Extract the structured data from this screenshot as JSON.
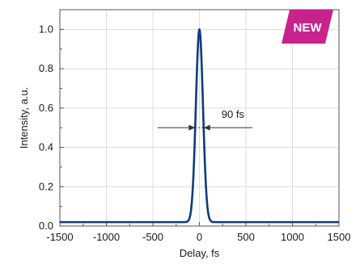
{
  "badge": {
    "label": "NEW",
    "color": "#c8238c"
  },
  "chart_data": {
    "type": "line",
    "xlabel": "Delay, fs",
    "ylabel": "Intensity, a.u.",
    "xlim": [
      -1500,
      1500
    ],
    "ylim": [
      0.0,
      1.1
    ],
    "xticks": [
      -1500,
      -1000,
      -500,
      0,
      500,
      1000,
      1500
    ],
    "xtick_labels": [
      "-1500",
      "-1000",
      "-500",
      "0",
      "500",
      "1000",
      "1500"
    ],
    "yticks": [
      0.0,
      0.2,
      0.4,
      0.6,
      0.8,
      1.0
    ],
    "ytick_labels": [
      "0.0",
      "0.2",
      "0.4",
      "0.6",
      "0.8",
      "1.0"
    ],
    "grid": true,
    "series": [
      {
        "color": "#0d3c7e",
        "x": [
          -1500,
          -1000,
          -500,
          -300,
          -200,
          -150,
          -100,
          -80,
          -60,
          -40,
          -20,
          0,
          20,
          40,
          60,
          80,
          100,
          150,
          200,
          300,
          500,
          1000,
          1500
        ],
        "y": [
          0.02,
          0.02,
          0.02,
          0.02,
          0.03,
          0.08,
          0.31,
          0.45,
          0.63,
          0.81,
          0.95,
          1.0,
          0.95,
          0.81,
          0.63,
          0.45,
          0.31,
          0.08,
          0.03,
          0.02,
          0.02,
          0.02,
          0.02
        ]
      }
    ],
    "annotation": {
      "text": "90 fs",
      "y": 0.5,
      "x_left": -45,
      "x_right": 45
    }
  }
}
